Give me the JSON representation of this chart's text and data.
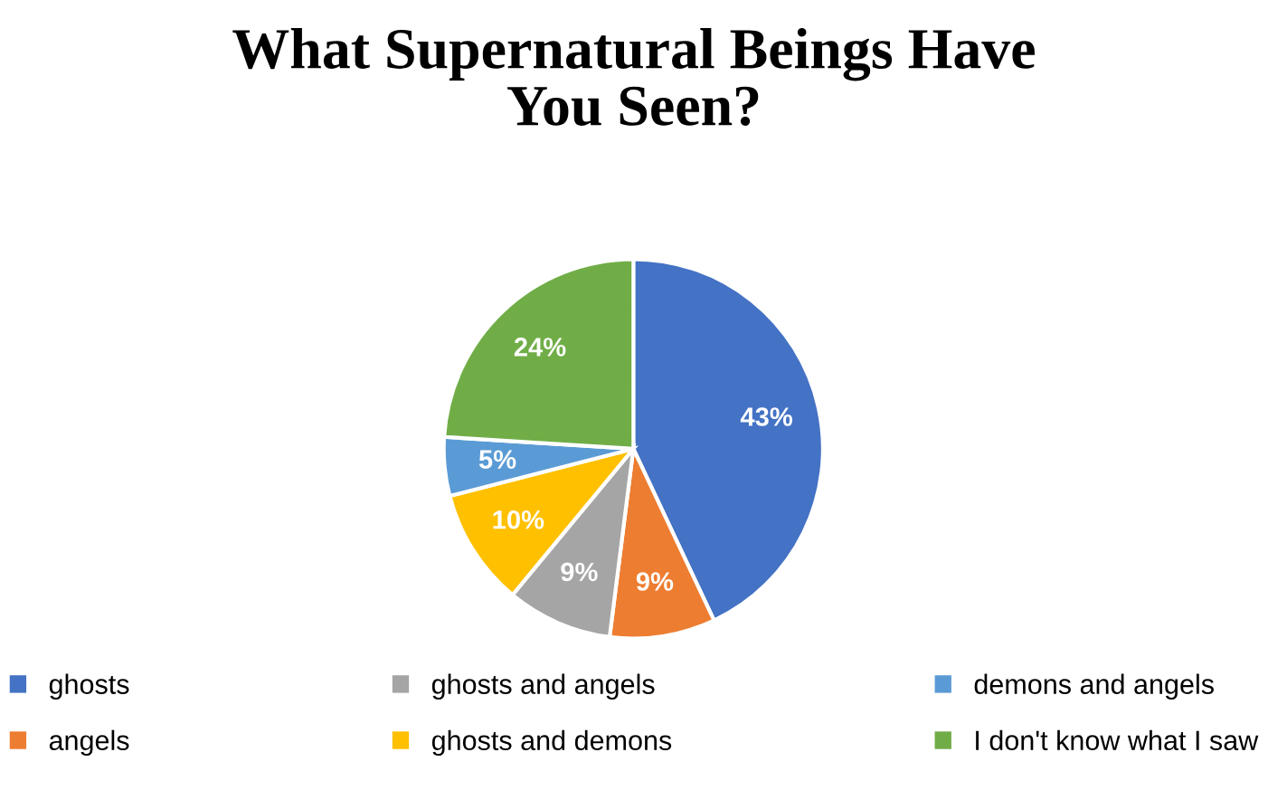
{
  "chart_data": {
    "type": "pie",
    "title": "What Supernatural Beings Have\nYou Seen?",
    "categories": [
      "ghosts",
      "angels",
      "ghosts and angels",
      "ghosts and demons",
      "demons and angels",
      "I don't know what I saw"
    ],
    "values": [
      43,
      9,
      9,
      10,
      5,
      24
    ],
    "colors": [
      "#4472c4",
      "#ed7d31",
      "#a5a5a5",
      "#ffc000",
      "#5b9bd5",
      "#70ad47"
    ],
    "value_labels": [
      "43%",
      "9%",
      "9%",
      "10%",
      "5%",
      "24%"
    ],
    "legend": "bottom"
  }
}
